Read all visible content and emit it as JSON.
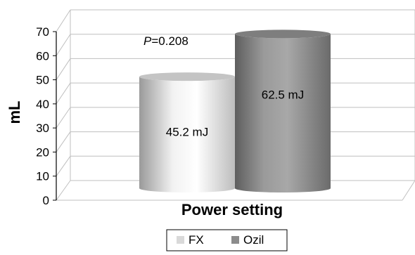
{
  "chart_data": {
    "type": "bar",
    "style": "3d-cylinder",
    "categories": [
      "FX",
      "Ozil"
    ],
    "values": [
      45.2,
      62.5
    ],
    "data_labels": [
      "45.2 mJ",
      "62.5 mJ"
    ],
    "xlabel": "Power setting",
    "ylabel": "mL",
    "ylim": [
      0,
      70
    ],
    "yticks": [
      "0",
      "10",
      "20",
      "30",
      "40",
      "50",
      "60",
      "70"
    ],
    "grid": true,
    "legend_placement": "bottom",
    "legend": [
      {
        "name": "FX",
        "color": "#d9d9d9"
      },
      {
        "name": "Ozil",
        "color": "#8c8c8c"
      }
    ],
    "annotation": {
      "italic": "P",
      "rest": "=0.208"
    }
  }
}
